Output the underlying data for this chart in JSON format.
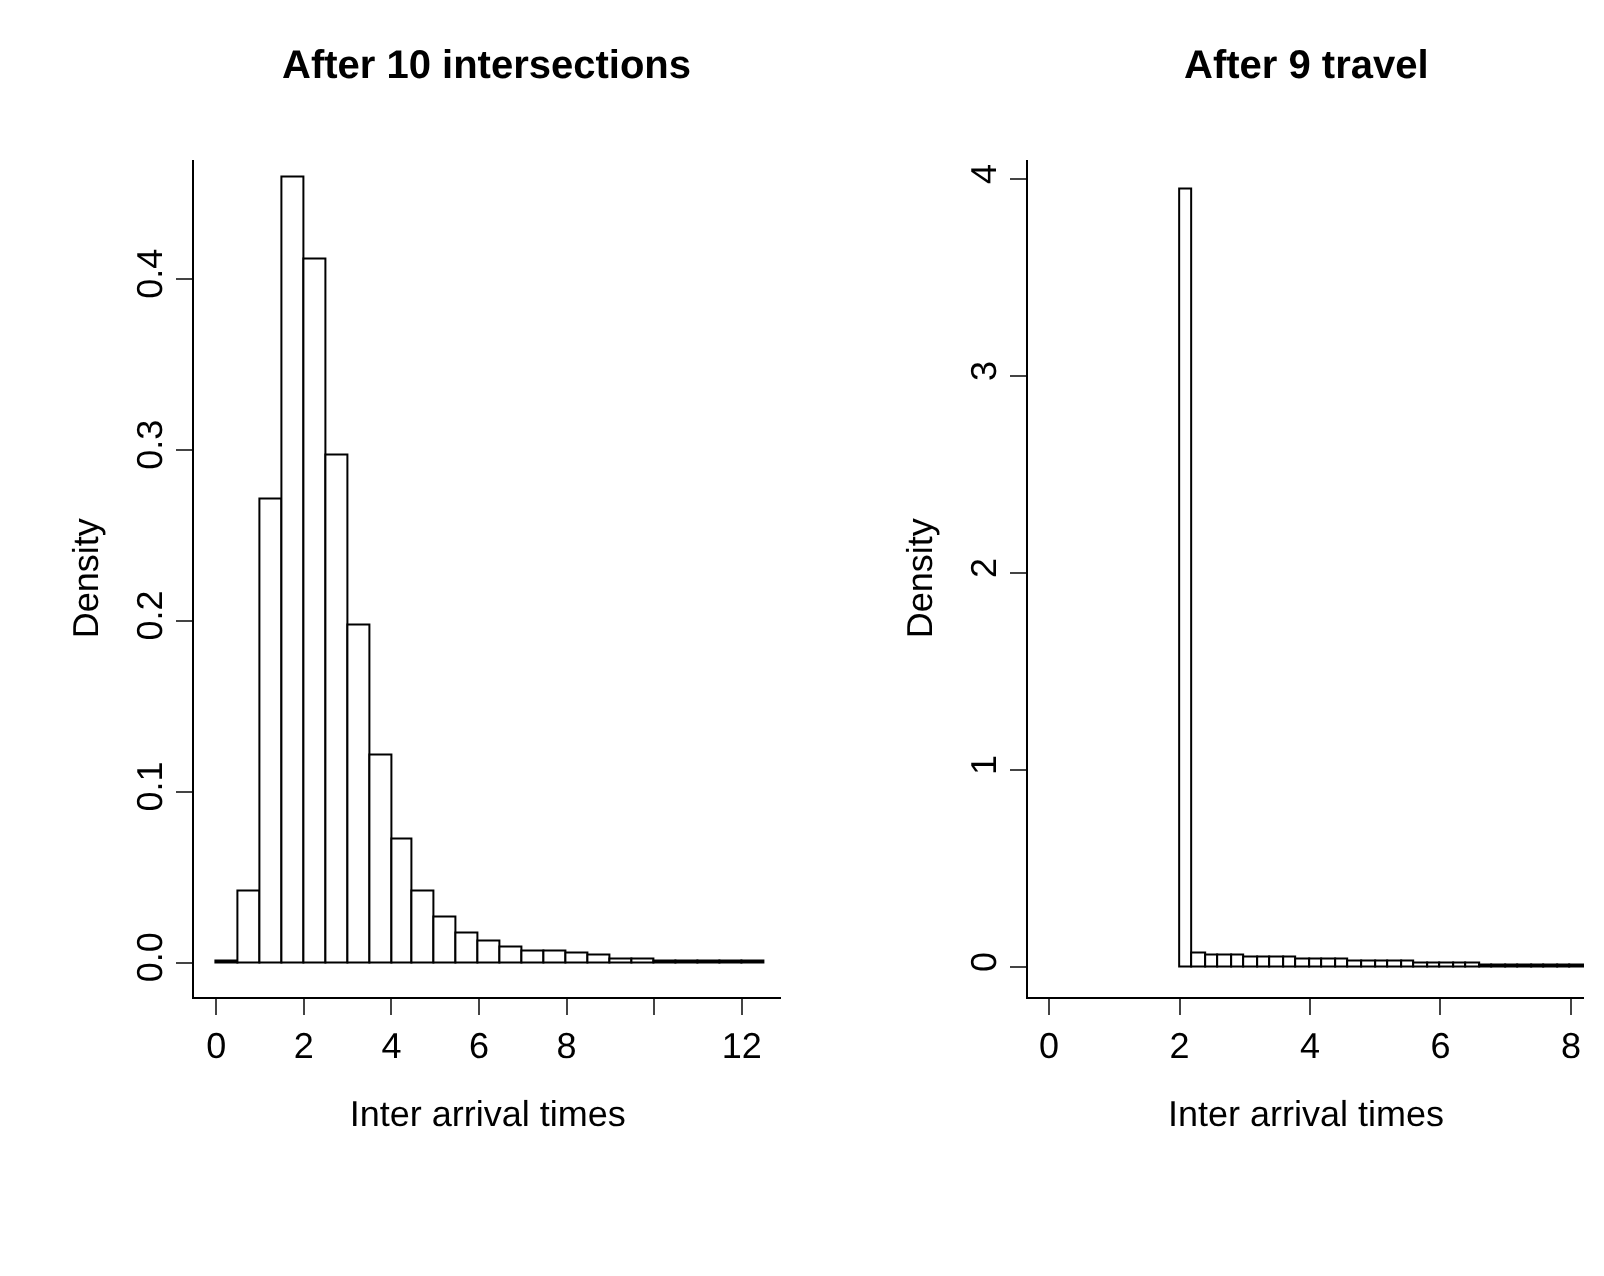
{
  "chart_data": [
    {
      "type": "histogram",
      "title": "After 10 intersections",
      "xlabel": "Inter arrival times",
      "ylabel": "Density",
      "color": "#ffffff",
      "bins": [
        0,
        0.5,
        1,
        1.5,
        2,
        2.5,
        3,
        3.5,
        4,
        4.5,
        5,
        5.5,
        6,
        6.5,
        7,
        7.5,
        8,
        8.5,
        9,
        9.5,
        10,
        10.5,
        11,
        11.5,
        12,
        12.5
      ],
      "values": [
        0.001,
        0.042,
        0.271,
        0.459,
        0.411,
        0.297,
        0.197,
        0.121,
        0.072,
        0.042,
        0.026,
        0.017,
        0.012,
        0.009,
        0.007,
        0.006,
        0.005,
        0.004,
        0.002,
        0.002,
        0.001,
        0.001,
        0.001,
        0.001,
        0.001
      ],
      "xlim": [
        -0.5,
        12.9
      ],
      "xticks": [
        0,
        2,
        4,
        6,
        8,
        {
          "value": 10,
          "label": null
        },
        12
      ],
      "ylim": [
        -0.02,
        0.47
      ],
      "yticks": [
        {
          "value": 0,
          "label": "0.0"
        },
        0.1,
        0.2,
        0.3,
        0.4
      ]
    },
    {
      "type": "histogram",
      "title": "After 9 travel",
      "xlabel": "Inter arrival times",
      "ylabel": "Density",
      "color": "#ffffff",
      "bins": [
        2.0,
        2.2,
        2.4,
        2.6,
        2.8,
        3.0,
        3.2,
        3.4,
        3.6,
        3.8,
        4.0,
        4.2,
        4.4,
        4.6,
        4.8,
        5.0,
        5.2,
        5.4,
        5.6,
        5.8,
        6.0,
        6.2,
        6.4,
        6.6,
        6.8,
        7.0,
        7.2,
        7.4,
        7.6,
        7.8,
        8.0,
        8.2
      ],
      "values": [
        3.95,
        0.07,
        0.06,
        0.06,
        0.06,
        0.05,
        0.05,
        0.05,
        0.05,
        0.04,
        0.04,
        0.04,
        0.04,
        0.03,
        0.03,
        0.03,
        0.03,
        0.03,
        0.02,
        0.02,
        0.02,
        0.02,
        0.02,
        0.01,
        0.01,
        0.01,
        0.01,
        0.01,
        0.01,
        0.01,
        0.01
      ],
      "xlim": [
        -0.32,
        8.2
      ],
      "xticks": [
        0,
        2,
        4,
        6,
        8
      ],
      "ylim": [
        -0.15,
        4.1
      ],
      "yticks": [
        0,
        1,
        2,
        3,
        4
      ]
    }
  ]
}
